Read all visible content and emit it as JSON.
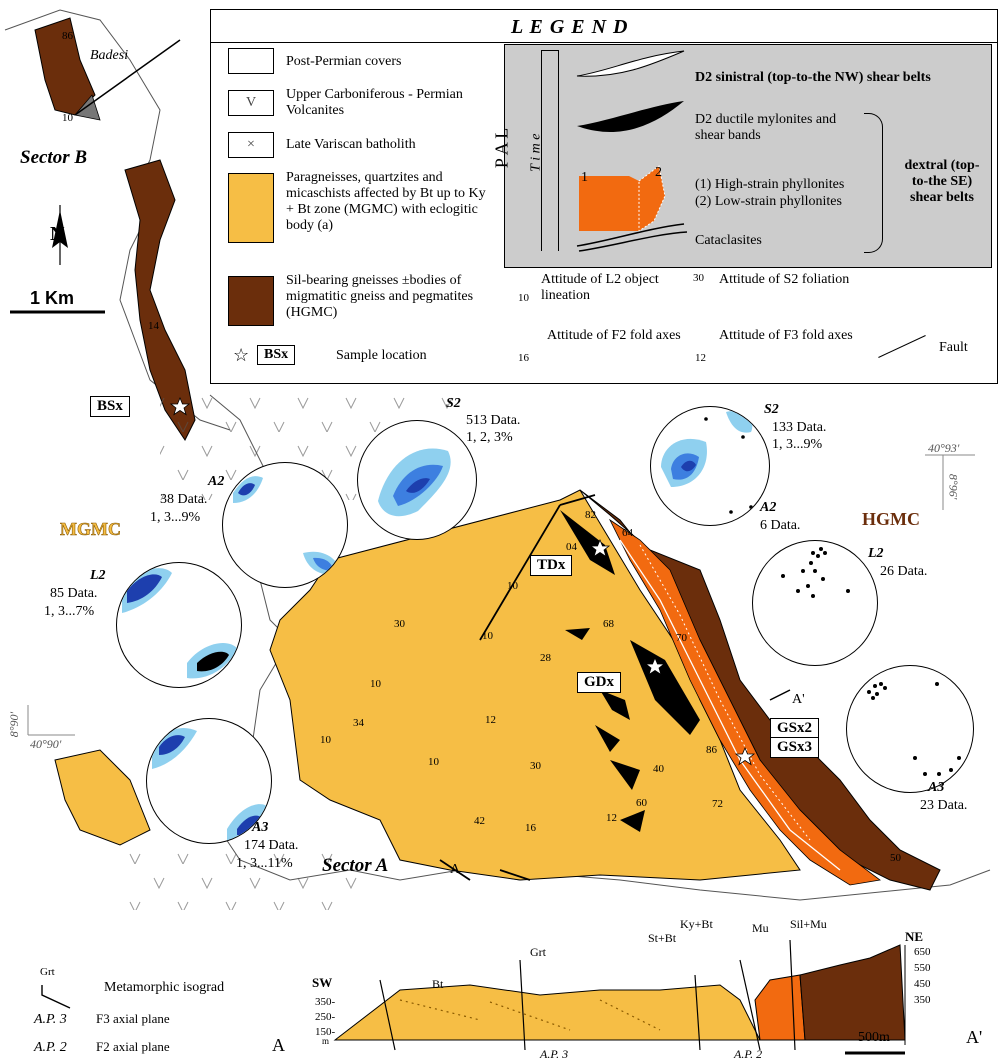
{
  "legend": {
    "title": "L E G E N D",
    "items": [
      {
        "label": "Post-Permian covers"
      },
      {
        "label": "Upper Carboniferous - Permian Volcanites"
      },
      {
        "label": "Late Variscan batholith"
      },
      {
        "label": "Paragneisses, quartzites and micaschists affected by Bt up to Ky + Bt zone (MGMC) with eclogitic body (a)"
      },
      {
        "label": "Sil-bearing gneisses ±bodies of migmatitic gneiss and pegmatites (HGMC)"
      },
      {
        "label": "Sample location",
        "tag": "BSx"
      }
    ],
    "time_box": {
      "pal": "P A L",
      "time": "T i m e",
      "d2_sinistral": "D2 sinistral (top-to-the NW) shear belts",
      "d2_ductile": "D2 ductile mylonites and shear bands",
      "high_strain": "(1) High-strain phyllonites",
      "low_strain": "(2) Low-strain phyllonites",
      "num1": "1",
      "num2": "2",
      "cataclasites": "Cataclasites",
      "dextral": "dextral (top-to-the SE) shear belts"
    },
    "symbols": {
      "l2": "Attitude of L2 object lineation",
      "l2_val": "10",
      "s2": "Attitude of S2 foliation",
      "s2_val": "30",
      "f2": "Attitude of F2 fold axes",
      "f2_val": "16",
      "f3": "Attitude of F3 fold axes",
      "f3_val": "12",
      "fault": "Fault"
    },
    "colors": {
      "mgmc": "#f6be45",
      "hgmc": "#6b2e0c",
      "phyllonite": "#f26a10"
    }
  },
  "map": {
    "sector_a": "Sector A",
    "sector_b": "Sector B",
    "badesi": "Badesi",
    "mgmc": "MGMC",
    "hgmc": "HGMC",
    "scale": "1 Km",
    "north": "N",
    "coord_top": "40°93'",
    "coord_right": "8°96'",
    "coord_left": "8°90'",
    "coord_bottom": "40°90'",
    "samples": [
      "BSx",
      "TDx",
      "GDx",
      "GSx2",
      "GSx3"
    ],
    "section_a": "A",
    "section_a_prime": "A'",
    "attitudes": [
      "86",
      "10",
      "14",
      "82",
      "04",
      "64",
      "10",
      "30",
      "10",
      "68",
      "70",
      "28",
      "10",
      "34",
      "10",
      "12",
      "10",
      "30",
      "40",
      "60",
      "12",
      "16",
      "42",
      "72",
      "86",
      "50"
    ]
  },
  "stereonets": [
    {
      "name": "S2",
      "lines": [
        "513 Data.",
        "1, 2, 3%"
      ]
    },
    {
      "name": "A2",
      "lines": [
        "38 Data.",
        "1, 3...9%"
      ]
    },
    {
      "name": "L2",
      "lines": [
        "85 Data.",
        "1, 3...7%"
      ]
    },
    {
      "name": "A3",
      "lines": [
        "174 Data.",
        "1, 3...11%"
      ]
    },
    {
      "name": "S2",
      "lines": [
        "133 Data.",
        "1, 3...9%"
      ]
    },
    {
      "name": "A2",
      "lines": [
        "6 Data."
      ]
    },
    {
      "name": "L2",
      "lines": [
        "26 Data."
      ]
    },
    {
      "name": "A3",
      "lines": [
        "23 Data."
      ]
    }
  ],
  "bottom_legend": {
    "grt": "Grt",
    "isograd": "Metamorphic  isograd",
    "ap3": "A.P. 3",
    "ap3_label": "F3 axial plane",
    "ap2": "A.P. 2",
    "ap2_label": "F2 axial plane"
  },
  "section": {
    "sw": "SW",
    "ne": "NE",
    "a": "A",
    "a_prime": "A'",
    "isograds": [
      "Bt",
      "Grt",
      "St+Bt",
      "Ky+Bt",
      "Mu",
      "Sil+Mu"
    ],
    "elev_left": [
      "350-",
      "250-",
      "150-",
      "m"
    ],
    "elev_right": [
      "650",
      "550",
      "450",
      "350"
    ],
    "ap3": "A.P. 3",
    "ap2": "A.P. 2",
    "scale": "500m"
  }
}
